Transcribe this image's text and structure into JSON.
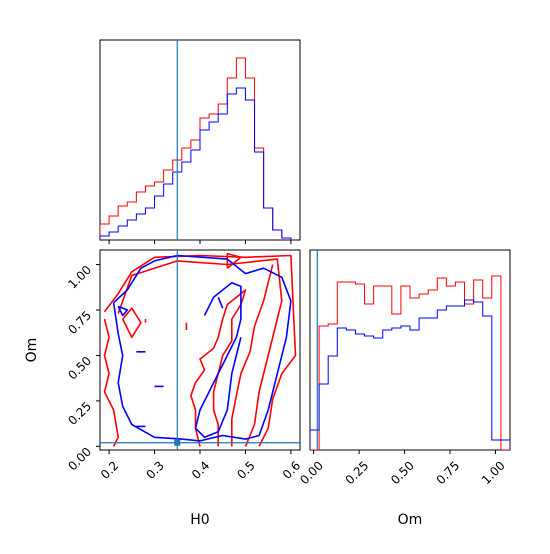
{
  "chart_data": {
    "type": "corner",
    "parameters": [
      "H0",
      "Om"
    ],
    "colors": {
      "red": "#ff0000",
      "blue": "#0000ff",
      "truth": "#1f77b4"
    },
    "truth": {
      "H0": 0.35,
      "Om": 0.02
    },
    "axes": {
      "H0": {
        "label": "H0",
        "range": [
          0.18,
          0.62
        ],
        "ticks": [
          "0.2",
          "0.3",
          "0.4",
          "0.5",
          "0.6"
        ],
        "tick_values": [
          0.2,
          0.3,
          0.4,
          0.5,
          0.6
        ]
      },
      "Om": {
        "label": "Om",
        "range": [
          -0.02,
          1.08
        ],
        "ticks": [
          "0.00",
          "0.25",
          "0.50",
          "0.75",
          "1.00"
        ],
        "tick_values": [
          0.0,
          0.25,
          0.5,
          0.75,
          1.0
        ]
      }
    },
    "hist_H0": {
      "bin_edges": [
        0.18,
        0.2,
        0.22,
        0.24,
        0.26,
        0.28,
        0.3,
        0.32,
        0.34,
        0.36,
        0.38,
        0.4,
        0.42,
        0.44,
        0.46,
        0.48,
        0.5,
        0.52,
        0.54,
        0.56,
        0.58,
        0.6
      ],
      "series": [
        {
          "color": "red",
          "values": [
            0.08,
            0.12,
            0.17,
            0.19,
            0.24,
            0.27,
            0.29,
            0.35,
            0.4,
            0.46,
            0.5,
            0.61,
            0.63,
            0.68,
            0.81,
            0.91,
            0.81,
            0.46,
            0.16,
            0.05,
            0.01
          ]
        },
        {
          "color": "blue",
          "values": [
            0.02,
            0.04,
            0.07,
            0.1,
            0.13,
            0.16,
            0.22,
            0.28,
            0.34,
            0.39,
            0.45,
            0.55,
            0.59,
            0.63,
            0.73,
            0.76,
            0.7,
            0.44,
            0.16,
            0.05,
            0.01
          ]
        }
      ]
    },
    "hist_Om": {
      "bin_edges": [
        -0.02,
        0.03,
        0.08,
        0.13,
        0.18,
        0.23,
        0.28,
        0.33,
        0.38,
        0.43,
        0.48,
        0.53,
        0.58,
        0.63,
        0.68,
        0.73,
        0.78,
        0.83,
        0.88,
        0.93,
        0.98,
        1.03,
        1.08
      ],
      "series": [
        {
          "color": "red",
          "values": [
            0.0,
            0.62,
            0.63,
            0.84,
            0.84,
            0.83,
            0.73,
            0.82,
            0.82,
            0.68,
            0.82,
            0.76,
            0.78,
            0.8,
            0.86,
            0.82,
            0.84,
            0.73,
            0.85,
            0.76,
            0.87,
            0.0
          ]
        },
        {
          "color": "blue",
          "values": [
            0.1,
            0.33,
            0.47,
            0.61,
            0.6,
            0.58,
            0.57,
            0.56,
            0.6,
            0.61,
            0.62,
            0.6,
            0.66,
            0.66,
            0.7,
            0.72,
            0.72,
            0.75,
            0.74,
            0.67,
            0.05,
            0.05
          ]
        }
      ]
    },
    "contours": [
      {
        "color": "red",
        "points": [
          [
            0.19,
            0.74
          ],
          [
            0.22,
            0.84
          ],
          [
            0.25,
            0.96
          ],
          [
            0.3,
            1.04
          ],
          [
            0.4,
            1.05
          ],
          [
            0.5,
            1.04
          ],
          [
            0.6,
            1.05
          ],
          [
            0.61,
            0.5
          ],
          [
            0.58,
            0.4
          ],
          [
            0.56,
            0.26
          ],
          [
            0.55,
            0.1
          ],
          [
            0.53,
            0.0
          ]
        ]
      },
      {
        "color": "red",
        "points": [
          [
            0.22,
            0.73
          ],
          [
            0.25,
            0.94
          ],
          [
            0.35,
            1.02
          ],
          [
            0.46,
            1.0
          ],
          [
            0.57,
            1.03
          ],
          [
            0.58,
            0.8
          ],
          [
            0.55,
            0.5
          ],
          [
            0.53,
            0.3
          ],
          [
            0.52,
            0.12
          ],
          [
            0.5,
            0.0
          ]
        ]
      },
      {
        "color": "red",
        "points": [
          [
            0.23,
            0.7
          ],
          [
            0.25,
            0.76
          ],
          [
            0.27,
            0.68
          ],
          [
            0.25,
            0.6
          ],
          [
            0.23,
            0.7
          ]
        ]
      },
      {
        "color": "red",
        "points": [
          [
            0.19,
            0.7
          ],
          [
            0.2,
            0.6
          ],
          [
            0.19,
            0.5
          ],
          [
            0.2,
            0.4
          ],
          [
            0.19,
            0.3
          ],
          [
            0.21,
            0.2
          ],
          [
            0.22,
            0.05
          ],
          [
            0.21,
            0.0
          ]
        ]
      },
      {
        "color": "red",
        "points": [
          [
            0.4,
            0.0
          ],
          [
            0.39,
            0.1
          ],
          [
            0.39,
            0.2
          ],
          [
            0.38,
            0.28
          ],
          [
            0.39,
            0.35
          ],
          [
            0.41,
            0.42
          ],
          [
            0.4,
            0.48
          ],
          [
            0.43,
            0.54
          ],
          [
            0.44,
            0.6
          ],
          [
            0.45,
            0.7
          ],
          [
            0.46,
            0.78
          ],
          [
            0.48,
            0.82
          ],
          [
            0.5,
            0.86
          ],
          [
            0.49,
            0.78
          ],
          [
            0.47,
            0.7
          ],
          [
            0.47,
            0.58
          ],
          [
            0.45,
            0.5
          ],
          [
            0.44,
            0.4
          ],
          [
            0.43,
            0.3
          ],
          [
            0.43,
            0.2
          ],
          [
            0.44,
            0.12
          ],
          [
            0.44,
            0.0
          ]
        ]
      },
      {
        "color": "red",
        "points": [
          [
            0.47,
            0.0
          ],
          [
            0.47,
            0.15
          ],
          [
            0.48,
            0.28
          ],
          [
            0.49,
            0.4
          ],
          [
            0.51,
            0.52
          ],
          [
            0.52,
            0.66
          ],
          [
            0.54,
            0.8
          ],
          [
            0.55,
            0.9
          ],
          [
            0.56,
            1.0
          ]
        ]
      },
      {
        "color": "red",
        "points": [
          [
            0.46,
            0.98
          ],
          [
            0.46,
            1.06
          ],
          [
            0.49,
            1.04
          ],
          [
            0.46,
            0.98
          ]
        ]
      },
      {
        "color": "red",
        "points": [
          [
            0.28,
            0.7
          ],
          [
            0.28,
            0.68
          ]
        ]
      },
      {
        "color": "red",
        "points": [
          [
            0.37,
            0.68
          ],
          [
            0.37,
            0.64
          ]
        ]
      },
      {
        "color": "blue",
        "points": [
          [
            0.21,
            0.79
          ],
          [
            0.24,
            0.86
          ],
          [
            0.27,
            0.98
          ],
          [
            0.3,
            1.02
          ],
          [
            0.35,
            1.05
          ],
          [
            0.46,
            1.03
          ],
          [
            0.5,
            0.95
          ],
          [
            0.54,
            0.98
          ],
          [
            0.58,
            0.93
          ],
          [
            0.6,
            0.8
          ],
          [
            0.59,
            0.6
          ],
          [
            0.57,
            0.4
          ],
          [
            0.55,
            0.2
          ],
          [
            0.53,
            0.06
          ],
          [
            0.5,
            0.04
          ],
          [
            0.45,
            0.06
          ],
          [
            0.4,
            0.03
          ],
          [
            0.36,
            0.04
          ],
          [
            0.3,
            0.05
          ],
          [
            0.25,
            0.12
          ],
          [
            0.23,
            0.22
          ],
          [
            0.22,
            0.35
          ],
          [
            0.23,
            0.5
          ],
          [
            0.22,
            0.62
          ],
          [
            0.21,
            0.79
          ]
        ]
      },
      {
        "color": "blue",
        "points": [
          [
            0.22,
            0.77
          ],
          [
            0.24,
            0.75
          ],
          [
            0.23,
            0.72
          ],
          [
            0.22,
            0.77
          ]
        ]
      },
      {
        "color": "blue",
        "points": [
          [
            0.41,
            0.72
          ],
          [
            0.43,
            0.82
          ],
          [
            0.47,
            0.9
          ],
          [
            0.49,
            0.88
          ],
          [
            0.49,
            0.7
          ],
          [
            0.48,
            0.6
          ],
          [
            0.46,
            0.5
          ],
          [
            0.44,
            0.4
          ],
          [
            0.42,
            0.3
          ],
          [
            0.4,
            0.2
          ],
          [
            0.39,
            0.1
          ],
          [
            0.41,
            0.05
          ],
          [
            0.44,
            0.08
          ],
          [
            0.46,
            0.2
          ],
          [
            0.47,
            0.4
          ],
          [
            0.49,
            0.6
          ]
        ]
      },
      {
        "color": "blue",
        "points": [
          [
            0.44,
            0.82
          ],
          [
            0.45,
            0.76
          ]
        ]
      },
      {
        "color": "blue",
        "points": [
          [
            0.26,
            0.52
          ],
          [
            0.28,
            0.52
          ]
        ]
      },
      {
        "color": "blue",
        "points": [
          [
            0.3,
            0.33
          ],
          [
            0.32,
            0.33
          ]
        ]
      },
      {
        "color": "blue",
        "points": [
          [
            0.26,
            0.11
          ],
          [
            0.28,
            0.11
          ]
        ]
      }
    ]
  }
}
